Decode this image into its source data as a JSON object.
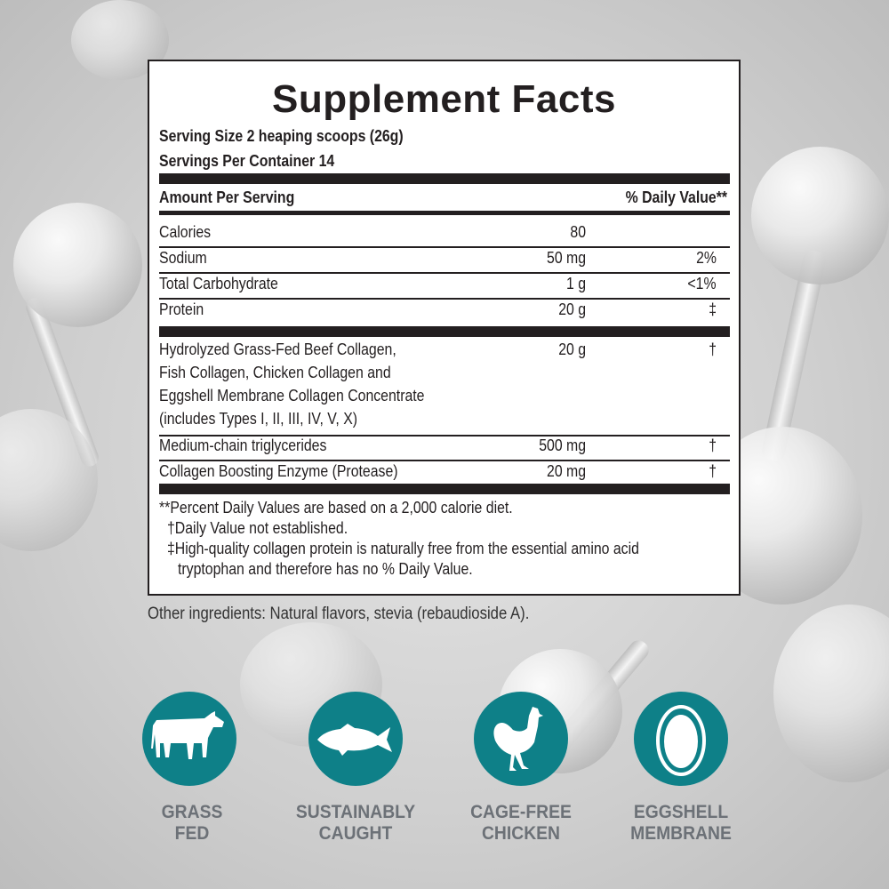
{
  "title": "Supplement Facts",
  "serving_size": "Serving Size 2 heaping scoops (26g)",
  "servings_per_container": "Servings Per Container 14",
  "header": {
    "amount": "Amount Per Serving",
    "dv": "% Daily Value**"
  },
  "rows": [
    {
      "name": "Calories",
      "amount": "80",
      "dv": ""
    },
    {
      "name": "Sodium",
      "amount": "50 mg",
      "dv": "2%"
    },
    {
      "name": "Total Carbohydrate",
      "amount": "1 g",
      "dv": "<1%"
    },
    {
      "name": "Protein",
      "amount": "20 g",
      "dv": "‡"
    }
  ],
  "blend": {
    "lines": [
      "Hydrolyzed Grass-Fed Beef Collagen,",
      "Fish Collagen, Chicken Collagen and",
      "Eggshell Membrane Collagen Concentrate",
      "(includes Types I, II, III, IV, V, X)"
    ],
    "amount": "20 g",
    "dv": "†"
  },
  "rows2": [
    {
      "name": "Medium-chain triglycerides",
      "amount": "500 mg",
      "dv": "†"
    },
    {
      "name": "Collagen Boosting Enzyme (Protease)",
      "amount": "20 mg",
      "dv": "†"
    }
  ],
  "footnotes": [
    "**Percent Daily Values are based on a 2,000 calorie diet.",
    "†Daily Value not established.",
    "‡High-quality collagen protein is naturally free from the essential amino acid",
    "tryptophan and therefore has no % Daily Value."
  ],
  "other_ingredients": "Other ingredients: Natural flavors, stevia (rebaudioside A).",
  "badges": [
    {
      "icon": "cow-icon",
      "line1": "GRASS",
      "line2": "FED"
    },
    {
      "icon": "fish-icon",
      "line1": "SUSTAINABLY",
      "line2": "CAUGHT"
    },
    {
      "icon": "chicken-icon",
      "line1": "CAGE-FREE",
      "line2": "CHICKEN"
    },
    {
      "icon": "egg-icon",
      "line1": "EGGSHELL",
      "line2": "MEMBRANE"
    }
  ],
  "colors": {
    "badge": "#0e8088",
    "badge_text": "#6c7177",
    "ink": "#231f20"
  }
}
